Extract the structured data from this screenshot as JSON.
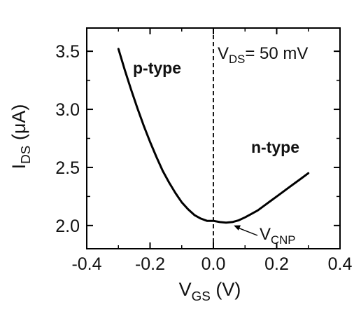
{
  "chart_data": {
    "type": "line",
    "xlabel": {
      "main": "V",
      "sub": "GS",
      "unit": " (V)"
    },
    "ylabel": {
      "main": "I",
      "sub": "DS",
      "unit": " (μA)"
    },
    "xlim": [
      -0.4,
      0.4
    ],
    "ylim": [
      1.8,
      3.7
    ],
    "x_ticks": [
      -0.4,
      -0.2,
      0.0,
      0.2,
      0.4
    ],
    "x_tick_labels": [
      "-0.4",
      "-0.2",
      "0.0",
      "0.2",
      "0.4"
    ],
    "y_ticks": [
      2.0,
      2.5,
      3.0,
      3.5
    ],
    "y_tick_labels": [
      "2.0",
      "2.5",
      "3.0",
      "3.5"
    ],
    "grid": false,
    "series": [
      {
        "color": "#000000",
        "x": [
          -0.3,
          -0.28,
          -0.26,
          -0.24,
          -0.22,
          -0.2,
          -0.18,
          -0.16,
          -0.14,
          -0.12,
          -0.1,
          -0.08,
          -0.06,
          -0.04,
          -0.02,
          0.0,
          0.02,
          0.04,
          0.06,
          0.08,
          0.1,
          0.12,
          0.14,
          0.16,
          0.18,
          0.2,
          0.22,
          0.24,
          0.26,
          0.28,
          0.3
        ],
        "y": [
          3.52,
          3.34,
          3.17,
          3.01,
          2.86,
          2.72,
          2.59,
          2.47,
          2.37,
          2.28,
          2.2,
          2.14,
          2.09,
          2.06,
          2.04,
          2.04,
          2.03,
          2.025,
          2.03,
          2.045,
          2.07,
          2.1,
          2.13,
          2.17,
          2.21,
          2.25,
          2.29,
          2.33,
          2.37,
          2.41,
          2.45
        ]
      }
    ],
    "vline": {
      "x": 0.0,
      "style": "dashed"
    },
    "annotations": {
      "vds": {
        "main": "V",
        "sub": "DS",
        "rest": "= 50 mV"
      },
      "p_type": {
        "text": "p-type",
        "color": "#1f77b4"
      },
      "n_type": {
        "text": "n-type",
        "color": "#d62728"
      },
      "vcnp": {
        "main": "V",
        "sub": "CNP",
        "x": 0.06,
        "y": 2.025
      }
    }
  }
}
